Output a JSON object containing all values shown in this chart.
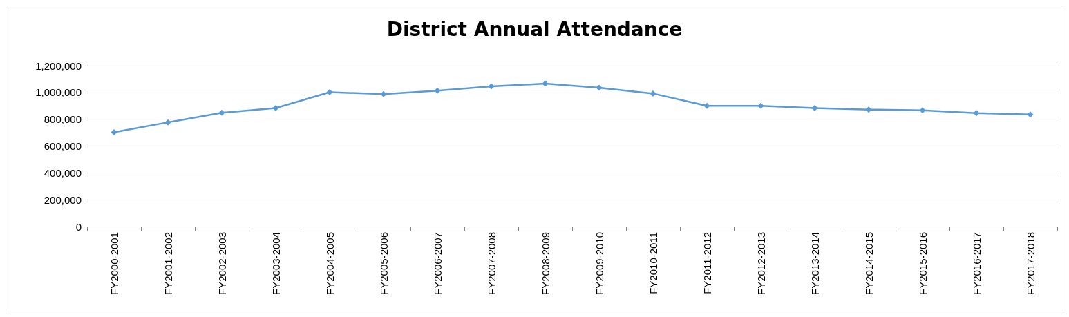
{
  "chart_data": {
    "type": "line",
    "title": "District Annual Attendance",
    "categories": [
      "FY2000-2001",
      "FY2001-2002",
      "FY2002-2003",
      "FY2003-2004",
      "FY2004-2005",
      "FY2005-2006",
      "FY2006-2007",
      "FY2007-2008",
      "FY2008-2009",
      "FY2009-2010",
      "FY2010-2011",
      "FY2011-2012",
      "FY2012-2013",
      "FY2013-2014",
      "FY2014-2015",
      "FY2015-2016",
      "FY2016-2017",
      "FY2017-2018"
    ],
    "series": [
      {
        "color": "#5b9bd5",
        "values": [
          703000,
          777000,
          848000,
          883000,
          1002000,
          987000,
          1013000,
          1045000,
          1066000,
          1035000,
          992000,
          900000,
          900000,
          883000,
          872000,
          867000,
          846000,
          835000
        ]
      }
    ],
    "ylim": [
      0,
      1200000
    ],
    "yticks": [
      {
        "value": 0,
        "label": "0"
      },
      {
        "value": 200000,
        "label": "200,000"
      },
      {
        "value": 400000,
        "label": "400,000"
      },
      {
        "value": 600000,
        "label": "600,000"
      },
      {
        "value": 800000,
        "label": "800,000"
      },
      {
        "value": 1000000,
        "label": "1,000,000"
      },
      {
        "value": 1200000,
        "label": "1,200,000"
      }
    ],
    "grid": "y",
    "marker": "diamond",
    "line_style": "solid"
  }
}
